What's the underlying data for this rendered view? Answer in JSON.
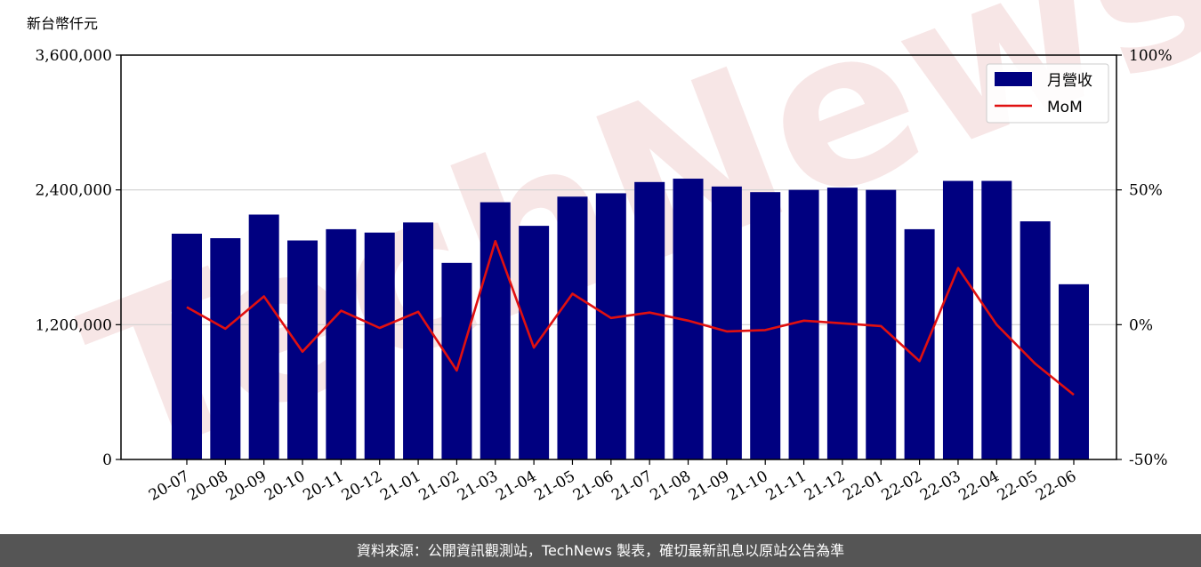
{
  "chart_data": {
    "type": "bar",
    "unit_label": "新台幣仟元",
    "categories": [
      "20-07",
      "20-08",
      "20-09",
      "20-10",
      "20-11",
      "20-12",
      "21-01",
      "21-02",
      "21-03",
      "21-04",
      "21-05",
      "21-06",
      "21-07",
      "21-08",
      "21-09",
      "21-10",
      "21-11",
      "21-12",
      "22-01",
      "22-02",
      "22-03",
      "22-04",
      "22-05",
      "22-06"
    ],
    "series": [
      {
        "name": "月營收",
        "axis": "left",
        "color": "#000080",
        "values": [
          2010000,
          1970000,
          2180000,
          1950000,
          2050000,
          2020000,
          2110000,
          1750000,
          2290000,
          2080000,
          2340000,
          2370000,
          2470000,
          2500000,
          2430000,
          2380000,
          2400000,
          2420000,
          2400000,
          2050000,
          2480000,
          2480000,
          2120000,
          1560000
        ]
      },
      {
        "name": "MoM",
        "axis": "right",
        "color": "#e01010",
        "values": [
          6.5,
          -1.5,
          10.5,
          -10.0,
          5.2,
          -1.2,
          4.8,
          -17.0,
          31.0,
          -8.5,
          11.5,
          2.5,
          4.5,
          1.5,
          -2.5,
          -2.0,
          1.5,
          0.5,
          -0.5,
          -13.5,
          21.0,
          0.0,
          -14.5,
          -26.0
        ]
      }
    ],
    "y_left": {
      "min": 0,
      "max": 3600000,
      "ticks": [
        0,
        1200000,
        2400000,
        3600000
      ],
      "tick_labels": [
        "0",
        "1,200,000",
        "2,400,000",
        "3,600,000"
      ]
    },
    "y_right": {
      "min": -50,
      "max": 100,
      "ticks": [
        -50,
        0,
        50,
        100
      ],
      "tick_labels": [
        "-50%",
        "0%",
        "50%",
        "100%"
      ]
    },
    "grid": "horizontal",
    "legend_position": "top-right",
    "watermark": "TechNews"
  },
  "footer": {
    "source_text": "資料來源：公開資訊觀測站，TechNews 製表，確切最新訊息以原站公告為準"
  }
}
